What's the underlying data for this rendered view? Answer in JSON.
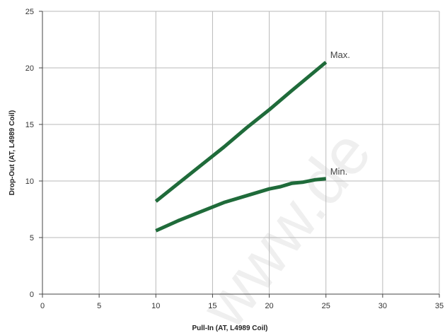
{
  "chart_data": {
    "type": "line",
    "title": "",
    "xlabel": "Pull-In (AT, L4989 Coil)",
    "ylabel": "Drop-Out (AT, L4989 Coil)",
    "xlim": [
      0,
      35
    ],
    "ylim": [
      0,
      25
    ],
    "x_ticks": [
      "0",
      "5",
      "10",
      "15",
      "20",
      "25",
      "30",
      "35"
    ],
    "y_ticks": [
      "0",
      "5",
      "10",
      "15",
      "20",
      "25"
    ],
    "grid": true,
    "series": [
      {
        "name": "Max.",
        "x": [
          10,
          12,
          14,
          16,
          18,
          20,
          22,
          25
        ],
        "y": [
          8.2,
          9.8,
          11.4,
          13.0,
          14.7,
          16.3,
          18.0,
          20.5
        ]
      },
      {
        "name": "Min.",
        "x": [
          10,
          12,
          14,
          16,
          18,
          20,
          21,
          22,
          23,
          24,
          25
        ],
        "y": [
          5.6,
          6.5,
          7.3,
          8.1,
          8.7,
          9.3,
          9.5,
          9.8,
          9.9,
          10.1,
          10.2
        ]
      }
    ],
    "colors": {
      "series": "#1f6b3a",
      "grid": "#b9b9b9",
      "axis": "#444444"
    },
    "watermark": "www.de"
  }
}
